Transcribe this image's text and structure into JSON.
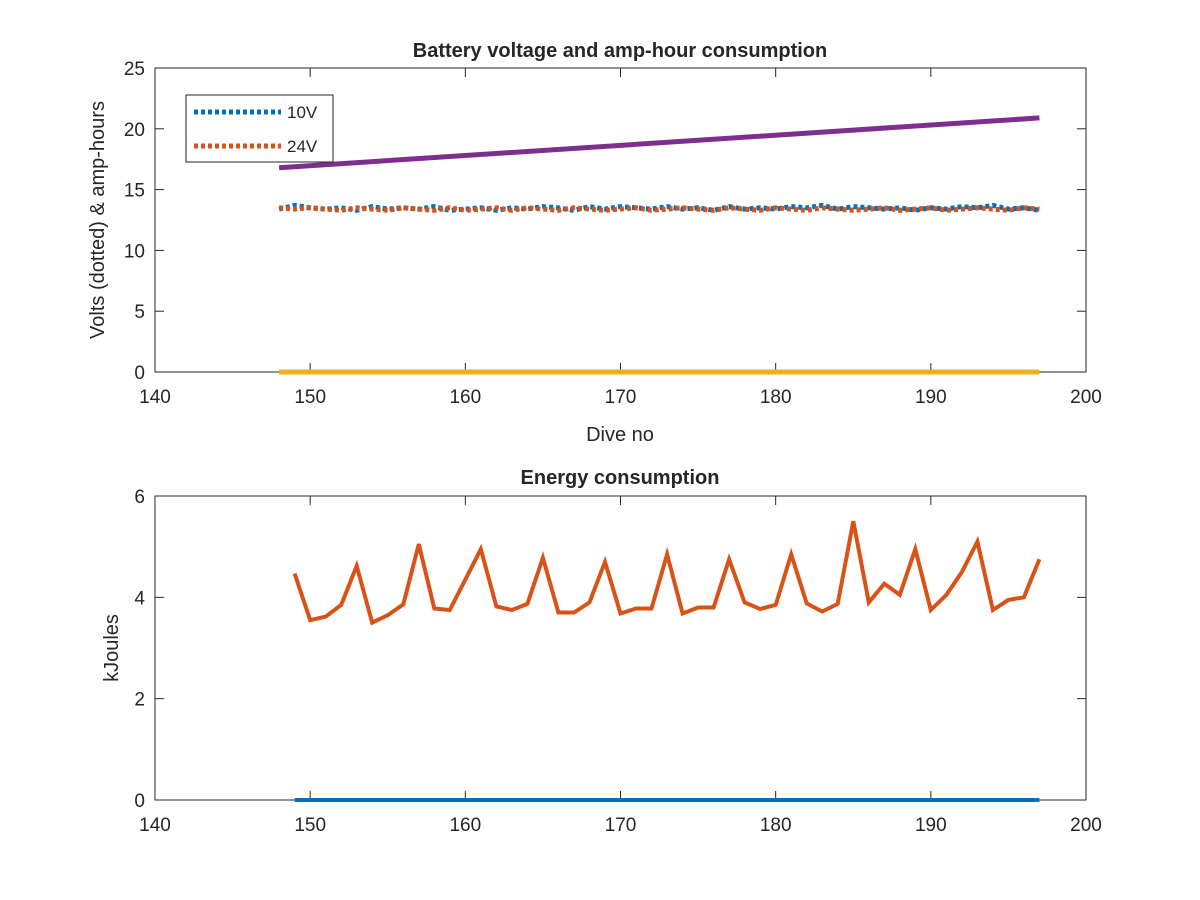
{
  "chart_data": [
    {
      "type": "line",
      "title": "Battery voltage and amp-hour consumption",
      "xlabel": "Dive no",
      "ylabel": "Volts (dotted) & amp-hours",
      "xlim": [
        140,
        200
      ],
      "ylim": [
        0,
        25
      ],
      "xticks": [
        140,
        150,
        160,
        170,
        180,
        190,
        200
      ],
      "yticks": [
        0,
        5,
        10,
        15,
        20,
        25
      ],
      "legend_position": "top-left",
      "grid": false,
      "series": [
        {
          "name": "10V",
          "style": "dotted",
          "color": "#0072BD",
          "in_legend": true,
          "x": [
            148,
            149,
            150,
            151,
            152,
            153,
            154,
            155,
            156,
            157,
            158,
            159,
            160,
            161,
            162,
            163,
            164,
            165,
            166,
            167,
            168,
            169,
            170,
            171,
            172,
            173,
            174,
            175,
            176,
            177,
            178,
            179,
            180,
            181,
            182,
            183,
            184,
            185,
            186,
            187,
            188,
            189,
            190,
            191,
            192,
            193,
            194,
            195,
            196,
            197
          ],
          "y": [
            13.4,
            13.7,
            13.5,
            13.4,
            13.5,
            13.3,
            13.6,
            13.4,
            13.5,
            13.4,
            13.6,
            13.3,
            13.4,
            13.5,
            13.3,
            13.5,
            13.4,
            13.6,
            13.5,
            13.3,
            13.6,
            13.4,
            13.6,
            13.5,
            13.4,
            13.6,
            13.4,
            13.5,
            13.3,
            13.6,
            13.4,
            13.5,
            13.4,
            13.6,
            13.5,
            13.7,
            13.4,
            13.6,
            13.5,
            13.4,
            13.5,
            13.3,
            13.5,
            13.4,
            13.6,
            13.5,
            13.7,
            13.4,
            13.5,
            13.3
          ]
        },
        {
          "name": "24V",
          "style": "dotted",
          "color": "#D95319",
          "in_legend": true,
          "x": [
            148,
            149,
            150,
            151,
            152,
            153,
            154,
            155,
            156,
            157,
            158,
            159,
            160,
            161,
            162,
            163,
            164,
            165,
            166,
            167,
            168,
            169,
            170,
            171,
            172,
            173,
            174,
            175,
            176,
            177,
            178,
            179,
            180,
            181,
            182,
            183,
            184,
            185,
            186,
            187,
            188,
            189,
            190,
            191,
            192,
            193,
            194,
            195,
            196,
            197
          ],
          "y": [
            13.5,
            13.4,
            13.5,
            13.4,
            13.3,
            13.5,
            13.4,
            13.3,
            13.5,
            13.4,
            13.3,
            13.5,
            13.3,
            13.4,
            13.5,
            13.3,
            13.5,
            13.4,
            13.3,
            13.5,
            13.4,
            13.3,
            13.4,
            13.5,
            13.3,
            13.4,
            13.5,
            13.4,
            13.3,
            13.5,
            13.4,
            13.3,
            13.5,
            13.4,
            13.3,
            13.5,
            13.4,
            13.3,
            13.4,
            13.5,
            13.3,
            13.4,
            13.5,
            13.3,
            13.4,
            13.5,
            13.4,
            13.3,
            13.5,
            13.4
          ]
        },
        {
          "style": "solid",
          "color": "#EDB120",
          "in_legend": false,
          "x": [
            148,
            197
          ],
          "y": [
            0,
            0
          ]
        },
        {
          "style": "solid",
          "color": "#7E2F8E",
          "in_legend": false,
          "x": [
            148,
            197
          ],
          "y": [
            16.8,
            20.9
          ]
        }
      ]
    },
    {
      "type": "line",
      "title": "Energy consumption",
      "xlabel": "",
      "ylabel": "kJoules",
      "xlim": [
        140,
        200
      ],
      "ylim": [
        0,
        6
      ],
      "xticks": [
        140,
        150,
        160,
        170,
        180,
        190,
        200
      ],
      "yticks": [
        0,
        2,
        4,
        6
      ],
      "grid": false,
      "series": [
        {
          "style": "solid",
          "color": "#0072BD",
          "x": [
            149,
            197
          ],
          "y": [
            0,
            0
          ]
        },
        {
          "style": "solid",
          "color": "#D95319",
          "x": [
            149,
            150,
            151,
            152,
            153,
            154,
            155,
            156,
            157,
            158,
            159,
            160,
            161,
            162,
            163,
            164,
            165,
            166,
            167,
            168,
            169,
            170,
            171,
            172,
            173,
            174,
            175,
            176,
            177,
            178,
            179,
            180,
            181,
            182,
            183,
            184,
            185,
            186,
            187,
            188,
            189,
            190,
            191,
            192,
            193,
            194,
            195,
            196,
            197
          ],
          "y": [
            4.47,
            3.55,
            3.62,
            3.85,
            4.62,
            3.5,
            3.65,
            3.86,
            5.05,
            3.78,
            3.75,
            4.35,
            4.95,
            3.82,
            3.75,
            3.87,
            4.78,
            3.7,
            3.7,
            3.9,
            4.7,
            3.68,
            3.78,
            3.78,
            4.85,
            3.68,
            3.8,
            3.8,
            4.75,
            3.9,
            3.77,
            3.85,
            4.85,
            3.88,
            3.72,
            3.87,
            5.5,
            3.9,
            4.27,
            4.05,
            4.95,
            3.75,
            4.05,
            4.5,
            5.1,
            3.75,
            3.95,
            4.0,
            4.75
          ]
        }
      ]
    }
  ]
}
